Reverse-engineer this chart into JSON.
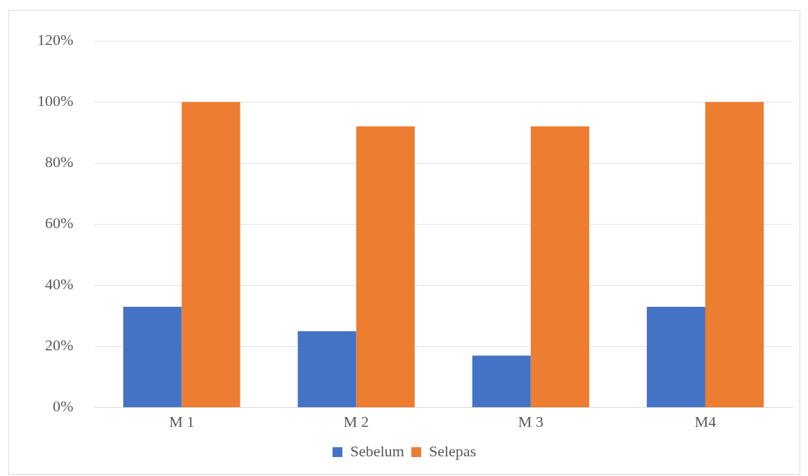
{
  "chart_data": {
    "type": "bar",
    "categories": [
      "M 1",
      "M 2",
      "M 3",
      "M4"
    ],
    "series": [
      {
        "name": "Sebelum",
        "color": "#4472c4",
        "values": [
          33,
          25,
          17,
          33
        ]
      },
      {
        "name": "Selepas",
        "color": "#ed7d31",
        "values": [
          100,
          92,
          92,
          100
        ]
      }
    ],
    "ylim": [
      0,
      120
    ],
    "yticks": [
      {
        "value": 0,
        "label": "0%"
      },
      {
        "value": 20,
        "label": "20%"
      },
      {
        "value": 40,
        "label": "40%"
      },
      {
        "value": 60,
        "label": "60%"
      },
      {
        "value": 80,
        "label": "80%"
      },
      {
        "value": 100,
        "label": "100%"
      },
      {
        "value": 120,
        "label": "120%"
      }
    ],
    "grid": "y",
    "legend": "bottom"
  }
}
